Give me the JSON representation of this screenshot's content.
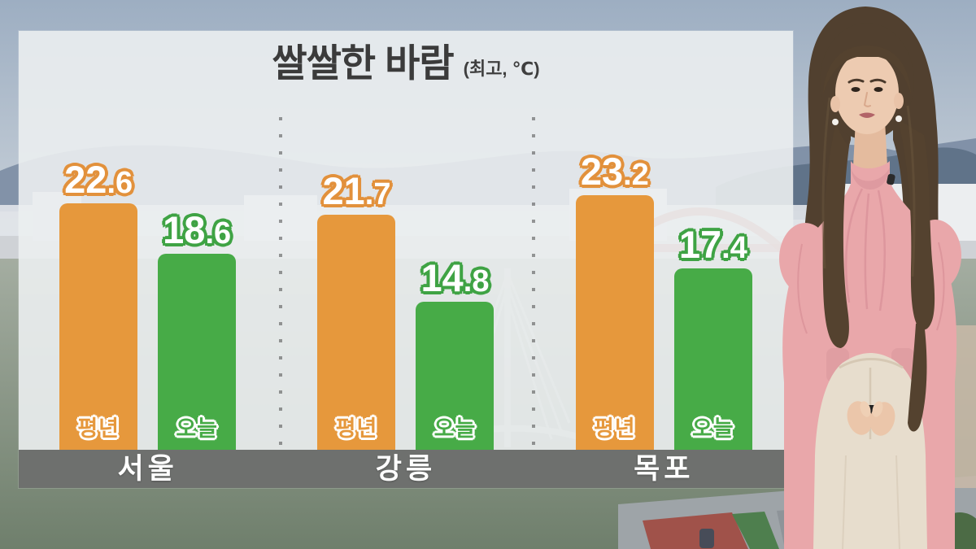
{
  "title": {
    "main": "쌀쌀한 바람",
    "unit": "(최고, ℃)"
  },
  "legend": {
    "normal": "평년",
    "today": "오늘"
  },
  "colors": {
    "normal_bar": "#E6983C",
    "today_bar": "#47AB47",
    "panel_overlay": "rgba(235,238,240,0.90)",
    "city_band": "#696B69",
    "title_text": "#3B3B3B",
    "value_text": "#FFFFFF"
  },
  "chart_data": {
    "type": "bar",
    "title": "쌀쌀한 바람",
    "unit_note": "(최고, ℃)",
    "categories": [
      "서울",
      "강릉",
      "목포"
    ],
    "series": [
      {
        "name": "평년",
        "color": "#E6983C",
        "values": [
          22.6,
          21.7,
          23.2
        ]
      },
      {
        "name": "오늘",
        "color": "#47AB47",
        "values": [
          18.6,
          14.8,
          17.4
        ]
      }
    ],
    "legend_position": "inside-bar-bottom",
    "grid": false,
    "groups": [
      {
        "city": "서울",
        "normal_int": "22",
        "normal_frac": ".6",
        "today_int": "18",
        "today_frac": ".6"
      },
      {
        "city": "강릉",
        "normal_int": "21",
        "normal_frac": ".7",
        "today_int": "14",
        "today_frac": ".8"
      },
      {
        "city": "목포",
        "normal_int": "23",
        "normal_frac": ".2",
        "today_int": "17",
        "today_frac": ".4"
      }
    ]
  }
}
